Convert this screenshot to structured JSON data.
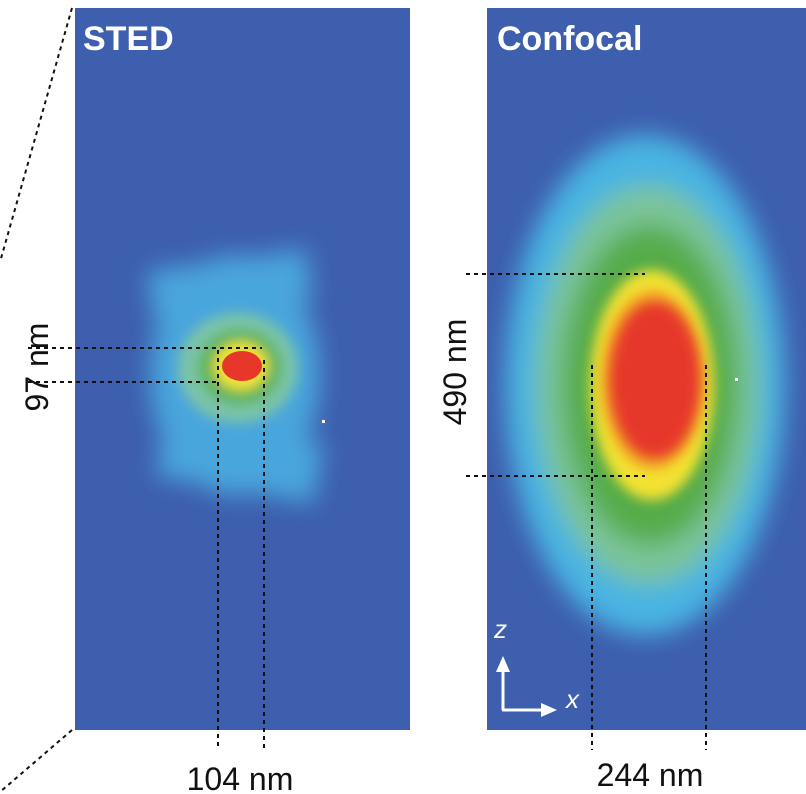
{
  "panels": [
    {
      "title": "STED",
      "vertical_measure": "97 nm",
      "horizontal_measure": "104 nm"
    },
    {
      "title": "Confocal",
      "vertical_measure": "490 nm",
      "horizontal_measure": "244 nm"
    }
  ],
  "axes": {
    "vertical": "z",
    "horizontal": "x"
  }
}
